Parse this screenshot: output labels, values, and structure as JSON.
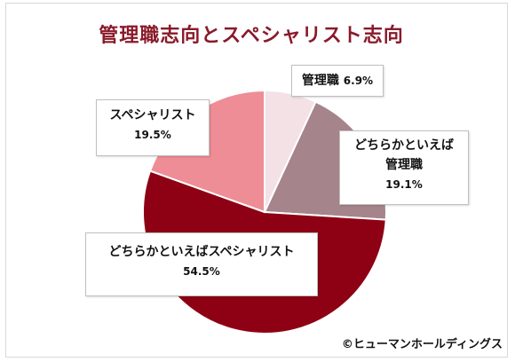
{
  "chart_data": {
    "type": "pie",
    "title": "管理職志向とスペシャリスト志向",
    "slices": [
      {
        "label": "管理職",
        "value": 6.9,
        "value_label": "6.9%",
        "color": "#f3e1e6"
      },
      {
        "label": "どちらかといえば管理職",
        "label_line1": "どちらかといえば",
        "label_line2": "管理職",
        "value": 19.1,
        "value_label": "19.1%",
        "color": "#a6848c"
      },
      {
        "label": "どちらかといえばスペシャリスト",
        "value": 54.5,
        "value_label": "54.5%",
        "color": "#8e0013"
      },
      {
        "label": "スペシャリスト",
        "value": 19.5,
        "value_label": "19.5%",
        "color": "#ee8d96"
      }
    ],
    "start": "12 o'clock",
    "direction": "clockwise",
    "legend": "none"
  },
  "footer": {
    "copyright": "©ヒューマンホールディングス"
  }
}
